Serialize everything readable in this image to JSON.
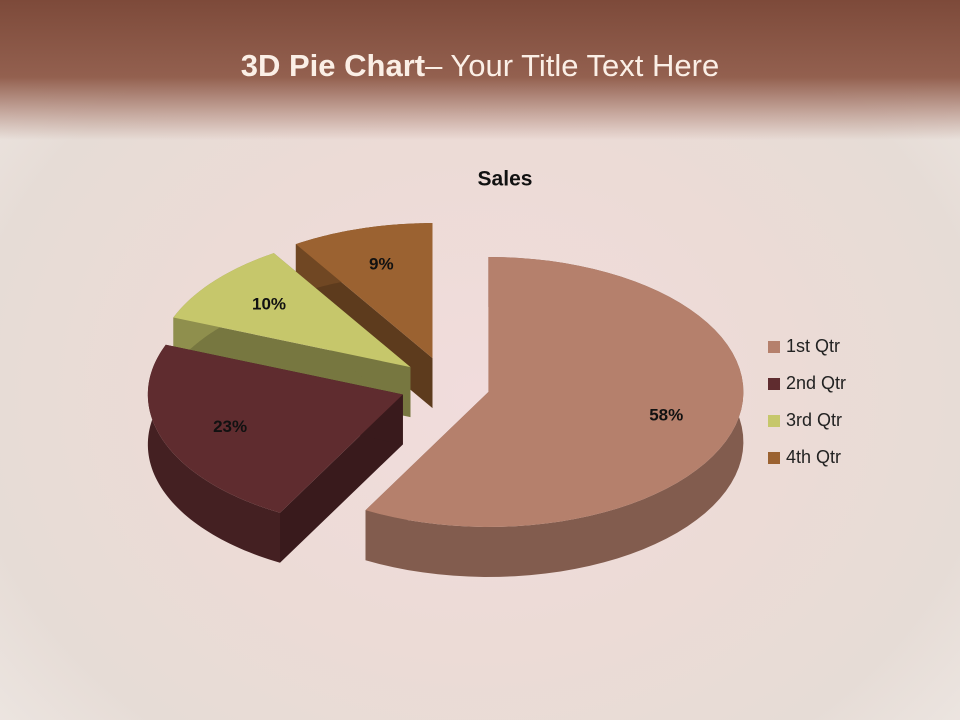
{
  "slide": {
    "title_bold": "3D Pie Chart",
    "title_rest": "– Your Title Text Here"
  },
  "chart_data": {
    "type": "pie",
    "title": "Sales",
    "categories": [
      "1st Qtr",
      "2nd Qtr",
      "3rd Qtr",
      "4th Qtr"
    ],
    "values": [
      58,
      23,
      10,
      9
    ],
    "value_labels": [
      "58%",
      "23%",
      "10%",
      "9%"
    ],
    "colors": [
      "#b5806c",
      "#5f2c2f",
      "#c6c76b",
      "#9b6231"
    ],
    "legend": "right"
  }
}
